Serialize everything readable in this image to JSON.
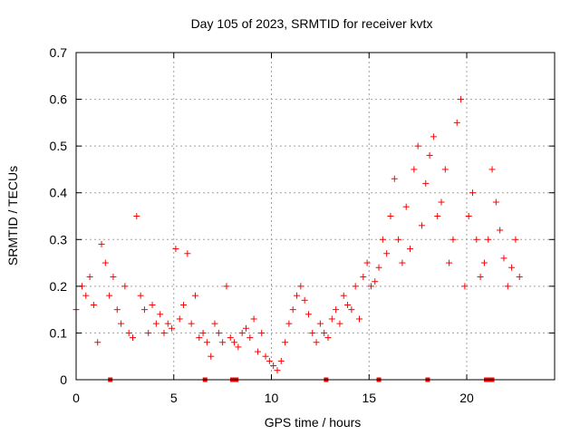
{
  "chart_data": {
    "type": "scatter",
    "title": "Day 105 of 2023, SRMTID for receiver kvtx",
    "xlabel": "GPS time / hours",
    "ylabel": "SRMTID / TECUs",
    "xlim": [
      0,
      24.5
    ],
    "ylim": [
      0,
      0.7
    ],
    "grid": true,
    "x_ticks": [
      0,
      5,
      10,
      15,
      20
    ],
    "x_tick_labels": [
      "0",
      "5",
      "10",
      "15",
      "20"
    ],
    "y_ticks": [
      0,
      0.1,
      0.2,
      0.3,
      0.4,
      0.5,
      0.6,
      0.7
    ],
    "y_tick_labels": [
      "0",
      "0.1",
      "0.2",
      "0.3",
      "0.4",
      "0.5",
      "0.6",
      "0.7"
    ],
    "marker": "plus",
    "color": "#ff0000",
    "series": [
      {
        "name": "SRMTID",
        "x": [
          0.0,
          0.3,
          0.5,
          0.7,
          0.9,
          1.1,
          1.3,
          1.5,
          1.7,
          1.9,
          2.1,
          2.3,
          2.5,
          2.7,
          2.9,
          3.1,
          3.3,
          3.5,
          3.7,
          3.9,
          4.1,
          4.3,
          4.5,
          4.7,
          4.9,
          5.1,
          5.3,
          5.5,
          5.7,
          5.9,
          6.1,
          6.3,
          6.5,
          6.7,
          6.9,
          7.1,
          7.3,
          7.5,
          7.7,
          7.9,
          8.1,
          8.3,
          8.5,
          8.7,
          8.9,
          9.1,
          9.3,
          9.5,
          9.7,
          9.9,
          10.1,
          10.3,
          10.5,
          10.7,
          10.9,
          11.1,
          11.3,
          11.5,
          11.7,
          11.9,
          12.1,
          12.3,
          12.5,
          12.7,
          12.9,
          13.1,
          13.3,
          13.5,
          13.7,
          13.9,
          14.1,
          14.3,
          14.5,
          14.7,
          14.9,
          15.1,
          15.3,
          15.5,
          15.7,
          15.9,
          16.1,
          16.3,
          16.5,
          16.7,
          16.9,
          17.1,
          17.3,
          17.5,
          17.7,
          17.9,
          18.1,
          18.3,
          18.5,
          18.7,
          18.9,
          19.1,
          19.3,
          19.5,
          19.7,
          19.9,
          20.1,
          20.3,
          20.5,
          20.7,
          20.9,
          21.1,
          21.3,
          21.5,
          21.7,
          21.9,
          22.1,
          22.3,
          22.5,
          22.7
        ],
        "y": [
          0.15,
          0.2,
          0.18,
          0.22,
          0.16,
          0.08,
          0.29,
          0.25,
          0.18,
          0.22,
          0.15,
          0.12,
          0.2,
          0.1,
          0.09,
          0.35,
          0.18,
          0.15,
          0.1,
          0.16,
          0.12,
          0.14,
          0.1,
          0.12,
          0.11,
          0.28,
          0.13,
          0.16,
          0.27,
          0.12,
          0.18,
          0.09,
          0.1,
          0.08,
          0.05,
          0.12,
          0.1,
          0.08,
          0.2,
          0.09,
          0.08,
          0.07,
          0.1,
          0.11,
          0.09,
          0.13,
          0.06,
          0.1,
          0.05,
          0.04,
          0.03,
          0.02,
          0.04,
          0.08,
          0.12,
          0.15,
          0.18,
          0.2,
          0.17,
          0.14,
          0.1,
          0.08,
          0.12,
          0.1,
          0.09,
          0.13,
          0.15,
          0.12,
          0.18,
          0.16,
          0.15,
          0.2,
          0.13,
          0.22,
          0.25,
          0.2,
          0.21,
          0.24,
          0.3,
          0.27,
          0.35,
          0.43,
          0.3,
          0.25,
          0.37,
          0.28,
          0.45,
          0.5,
          0.33,
          0.42,
          0.48,
          0.52,
          0.35,
          0.38,
          0.45,
          0.25,
          0.3,
          0.55,
          0.6,
          0.2,
          0.35,
          0.4,
          0.3,
          0.22,
          0.25,
          0.3,
          0.45,
          0.38,
          0.32,
          0.26,
          0.2,
          0.24,
          0.3,
          0.22
        ]
      }
    ],
    "zero_points_x": [
      1.75,
      6.6,
      8.0,
      8.2,
      12.8,
      15.5,
      18.0,
      21.0,
      21.15,
      21.3
    ]
  }
}
